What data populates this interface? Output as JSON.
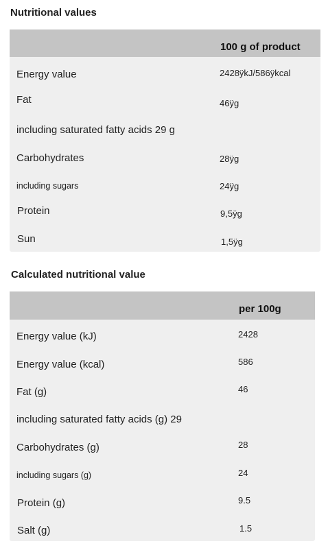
{
  "nutrition": {
    "title": "Nutritional values",
    "header": "100 g of product",
    "rows": [
      {
        "label": "Energy value",
        "value": "2428ÿkJ/586ÿkcal"
      },
      {
        "label": "Fat",
        "value": "46ÿg"
      },
      {
        "label": "including saturated fatty acids 29 g",
        "value": ""
      },
      {
        "label": "Carbohydrates",
        "value": "28ÿg"
      },
      {
        "label": "including sugars",
        "value": "24ÿg"
      },
      {
        "label": "Protein",
        "value": "9,5ÿg"
      },
      {
        "label": "Sun",
        "value": "1,5ÿg"
      }
    ]
  },
  "calculated": {
    "title": "Calculated nutritional value",
    "header": "per 100g",
    "rows": [
      {
        "label": "Energy value (kJ)",
        "value": "2428"
      },
      {
        "label": "Energy value (kcal)",
        "value": "586"
      },
      {
        "label": "Fat (g)",
        "value": "46"
      },
      {
        "label": "including saturated fatty acids (g) 29",
        "value": ""
      },
      {
        "label": "Carbohydrates (g)",
        "value": "28"
      },
      {
        "label": "including sugars (g)",
        "value": "24"
      },
      {
        "label": "Protein (g)",
        "value": "9.5"
      },
      {
        "label": "Salt (g)",
        "value": "1.5"
      }
    ]
  }
}
